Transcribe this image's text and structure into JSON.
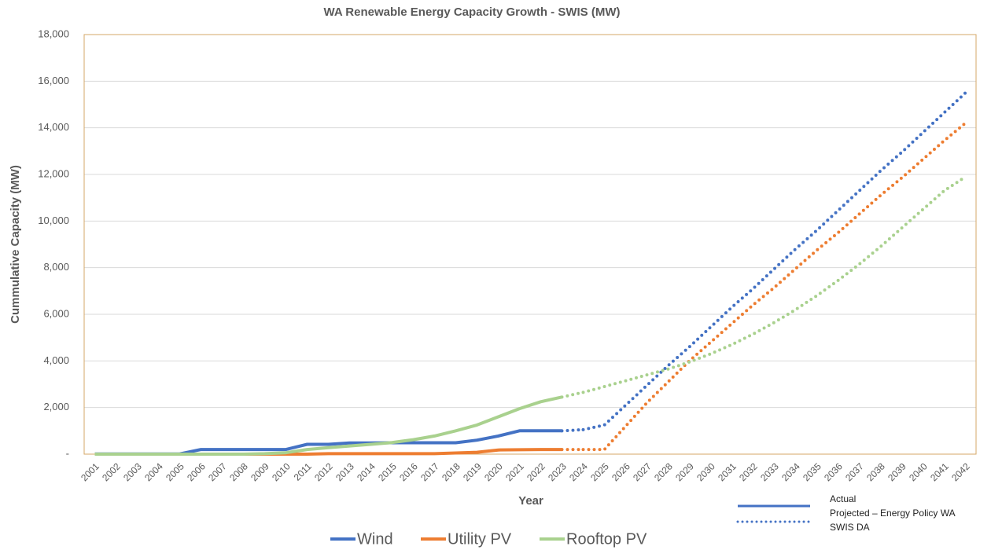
{
  "chart_data": {
    "type": "line",
    "title": "WA Renewable Energy Capacity Growth - SWIS (MW)",
    "x_label": "Year",
    "y_label": "Cummulative Capacity (MW)",
    "categories": [
      "2001",
      "2002",
      "2003",
      "2004",
      "2005",
      "2006",
      "2007",
      "2008",
      "2009",
      "2010",
      "2011",
      "2012",
      "2013",
      "2014",
      "2015",
      "2016",
      "2017",
      "2018",
      "2019",
      "2020",
      "2021",
      "2022",
      "2023",
      "2024",
      "2025",
      "2026",
      "2027",
      "2028",
      "2029",
      "2030",
      "2031",
      "2032",
      "2033",
      "2034",
      "2035",
      "2036",
      "2037",
      "2038",
      "2039",
      "2040",
      "2041",
      "2042"
    ],
    "ylim": [
      0,
      18000
    ],
    "yticks": [
      {
        "value": 0,
        "label": "-"
      },
      {
        "value": 2000,
        "label": "2,000"
      },
      {
        "value": 4000,
        "label": "4,000"
      },
      {
        "value": 6000,
        "label": "6,000"
      },
      {
        "value": 8000,
        "label": "8,000"
      },
      {
        "value": 10000,
        "label": "10,000"
      },
      {
        "value": 12000,
        "label": "12,000"
      },
      {
        "value": 14000,
        "label": "14,000"
      },
      {
        "value": 16000,
        "label": "16,000"
      },
      {
        "value": 18000,
        "label": "18,000"
      }
    ],
    "grid": true,
    "legend": "bottom",
    "series": [
      {
        "name": "Wind",
        "color": "#4472c4",
        "values": [
          10,
          10,
          10,
          10,
          10,
          200,
          200,
          200,
          200,
          200,
          420,
          420,
          480,
          480,
          490,
          490,
          490,
          490,
          600,
          780,
          1000,
          1000,
          1000,
          null,
          null,
          null,
          null,
          null,
          null,
          null,
          null,
          null,
          null,
          null,
          null,
          null,
          null,
          null,
          null,
          null,
          null,
          null
        ],
        "projected_values": [
          null,
          null,
          null,
          null,
          null,
          null,
          null,
          null,
          null,
          null,
          null,
          null,
          null,
          null,
          null,
          null,
          null,
          null,
          null,
          null,
          null,
          null,
          null,
          1050,
          1250,
          2100,
          2950,
          3800,
          4600,
          5450,
          6300,
          7100,
          7950,
          8800,
          9600,
          10450,
          11300,
          12150,
          12950,
          13800,
          14650,
          15500
        ]
      },
      {
        "name": "Utility PV",
        "color": "#ed7d31",
        "values": [
          0,
          0,
          0,
          0,
          0,
          0,
          0,
          0,
          0,
          0,
          0,
          20,
          20,
          20,
          20,
          20,
          20,
          50,
          80,
          180,
          190,
          200,
          200,
          null,
          null,
          null,
          null,
          null,
          null,
          null,
          null,
          null,
          null,
          null,
          null,
          null,
          null,
          null,
          null,
          null,
          null,
          null
        ],
        "projected_values": [
          null,
          null,
          null,
          null,
          null,
          null,
          null,
          null,
          null,
          null,
          null,
          null,
          null,
          null,
          null,
          null,
          null,
          null,
          null,
          null,
          null,
          null,
          null,
          200,
          200,
          1200,
          2200,
          3100,
          4000,
          4800,
          5600,
          6400,
          7150,
          7950,
          8750,
          9500,
          10300,
          11100,
          11850,
          12650,
          13450,
          14200
        ]
      },
      {
        "name": "Rooftop PV",
        "color": "#a9d18e",
        "values": [
          0,
          0,
          0,
          0,
          0,
          0,
          0,
          0,
          20,
          60,
          200,
          280,
          350,
          420,
          500,
          620,
          780,
          1000,
          1250,
          1600,
          1950,
          2250,
          2450,
          null,
          null,
          null,
          null,
          null,
          null,
          null,
          null,
          null,
          null,
          null,
          null,
          null,
          null,
          null,
          null,
          null,
          null,
          null
        ],
        "projected_values": [
          null,
          null,
          null,
          null,
          null,
          null,
          null,
          null,
          null,
          null,
          null,
          null,
          null,
          null,
          null,
          null,
          null,
          null,
          null,
          null,
          null,
          null,
          null,
          2650,
          2900,
          3150,
          3400,
          3650,
          3950,
          4300,
          4700,
          5150,
          5650,
          6200,
          6800,
          7450,
          8150,
          8900,
          9700,
          10500,
          11300,
          11900
        ]
      }
    ],
    "line_styles": [
      {
        "label": "Actual",
        "dash": "solid"
      },
      {
        "label": "Projected – Energy Policy WA",
        "label_2": "SWIS DA",
        "dash": "dotted"
      }
    ]
  }
}
